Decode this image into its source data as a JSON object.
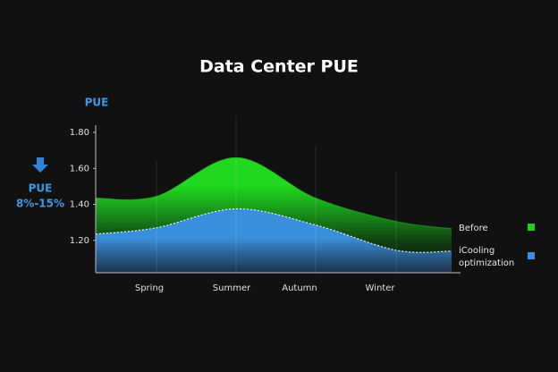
{
  "chart_data": {
    "type": "area",
    "title": "Data Center PUE",
    "y_label": "PUE",
    "annotation": [
      "PUE",
      "8%-15%"
    ],
    "categories": [
      null,
      "Spring",
      "Summer",
      "Autumn",
      "Winter",
      null
    ],
    "series": [
      {
        "name": "Before",
        "color": "#22cc22",
        "values": [
          1.435,
          1.445,
          1.66,
          1.435,
          1.305,
          1.265
        ]
      },
      {
        "name": "iCooling optimization",
        "color": "#3a8fd8",
        "values": [
          1.235,
          1.27,
          1.375,
          1.285,
          1.145,
          1.14
        ]
      }
    ],
    "ylim": [
      1.02,
      1.84
    ],
    "yticks": [
      {
        "value": 1.2,
        "label": "1.20"
      },
      {
        "value": 1.4,
        "label": "1.40"
      },
      {
        "value": 1.6,
        "label": "1.60"
      },
      {
        "value": 1.8,
        "label": "1.80"
      }
    ],
    "grid": false,
    "legend": "right"
  }
}
